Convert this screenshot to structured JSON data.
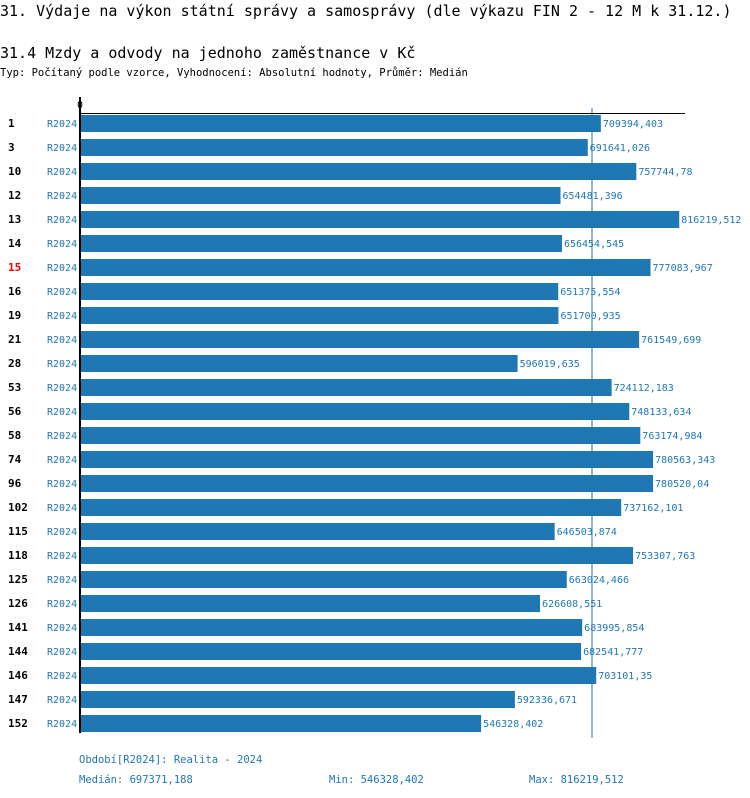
{
  "title": "31. Výdaje na výkon státní správy a samosprávy (dle výkazu FIN 2 - 12 M k 31.12.)",
  "subtitle": "31.4 Mzdy a odvody na jednoho zaměstnance v Kč",
  "meta": "Typ: Počítaný podle vzorce, Vyhodnocení: Absolutní hodnoty, Průměr: Medián",
  "colors": {
    "bar": "#1f77b4",
    "label": "#1f77b4",
    "highlight": "#ff0000"
  },
  "chart_data": {
    "type": "bar",
    "orientation": "horizontal",
    "axis_tick": "0",
    "xlim": [
      0,
      820000
    ],
    "median": 697371.188,
    "categories": [
      "1",
      "3",
      "10",
      "12",
      "13",
      "14",
      "15",
      "16",
      "19",
      "21",
      "28",
      "53",
      "56",
      "58",
      "74",
      "96",
      "102",
      "115",
      "118",
      "125",
      "126",
      "141",
      "144",
      "146",
      "147",
      "152"
    ],
    "highlighted": [
      "15"
    ],
    "series_label": "R2024",
    "values": [
      709394.403,
      691641.026,
      757744.78,
      654481.396,
      816219.512,
      656454.545,
      777083.967,
      651375.554,
      651700.935,
      761549.699,
      596019.635,
      724112.183,
      748133.634,
      763174.984,
      780563.343,
      780520.04,
      737162.101,
      646503.874,
      753307.763,
      663024.466,
      626608.551,
      683995.854,
      682541.777,
      703101.35,
      592336.671,
      546328.402
    ],
    "value_labels": [
      "709394,403",
      "691641,026",
      "757744,78",
      "654481,396",
      "816219,512",
      "656454,545",
      "777083,967",
      "651375,554",
      "651700,935",
      "761549,699",
      "596019,635",
      "724112,183",
      "748133,634",
      "763174,984",
      "780563,343",
      "780520,04",
      "737162,101",
      "646503,874",
      "753307,763",
      "663024,466",
      "626608,551",
      "683995,854",
      "682541,777",
      "703101,35",
      "592336,671",
      "546328,402"
    ]
  },
  "footer": {
    "period": "Období[R2024]: Realita - 2024",
    "median": "Medián: 697371,188",
    "min": "Min: 546328,402",
    "max": "Max: 816219,512"
  }
}
